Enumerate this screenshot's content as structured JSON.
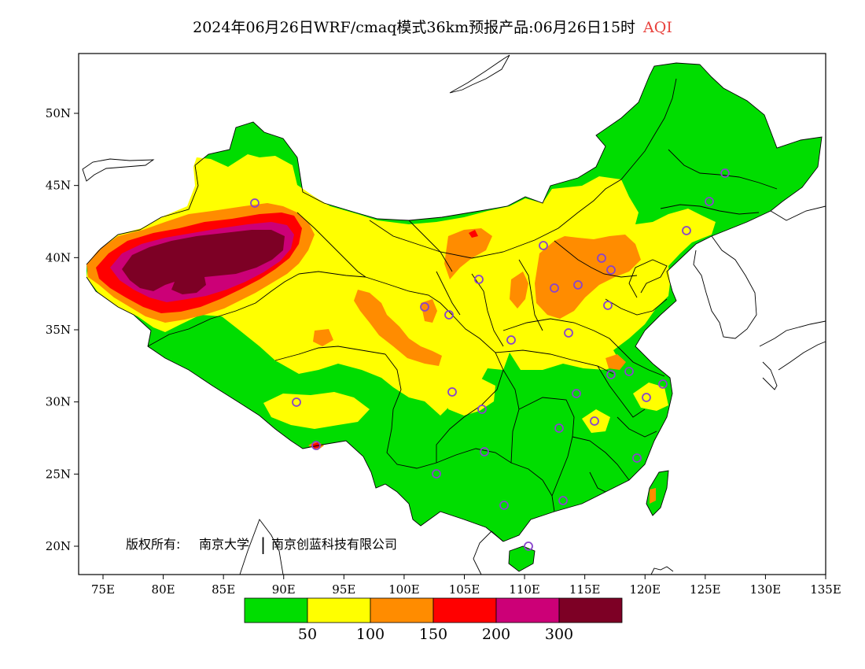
{
  "title": {
    "main": "2024年06月26日WRF/cmaq模式36km预报产品:06月26日15时",
    "variable": "AQI",
    "variable_color": "#e8413c"
  },
  "axes": {
    "lon_ticks": [
      "75E",
      "80E",
      "85E",
      "90E",
      "95E",
      "100E",
      "105E",
      "110E",
      "115E",
      "120E",
      "125E",
      "130E",
      "135E"
    ],
    "lat_ticks": [
      "50N",
      "45N",
      "40N",
      "35N",
      "30N",
      "25N",
      "20N"
    ]
  },
  "copyright": {
    "label": "版权所有:",
    "org1": "南京大学",
    "separator": "|",
    "org2": "南京创蓝科技有限公司"
  },
  "colorbar": {
    "colors": [
      "#00dd00",
      "#ffff00",
      "#ff8c00",
      "#ff0000",
      "#cc0077",
      "#7d0025"
    ],
    "labels": [
      "50",
      "100",
      "150",
      "200",
      "300"
    ]
  },
  "colors": {
    "good": "#00dd00",
    "moderate": "#ffff00",
    "usg": "#ff8c00",
    "unhealthy": "#ff0000",
    "very_unhealthy": "#cc0077",
    "hazardous": "#7d0025",
    "station_marker": "#8844cc"
  }
}
